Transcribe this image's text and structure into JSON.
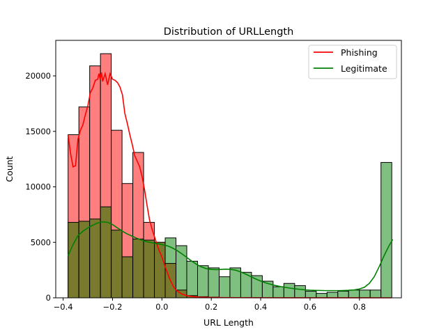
{
  "chart_data": {
    "type": "bar",
    "title": "Distribution of URLLength",
    "xlabel": "URL Length",
    "ylabel": "Count",
    "xlim": [
      -0.43,
      0.97
    ],
    "ylim": [
      0,
      23200
    ],
    "xticks": [
      -0.4,
      -0.2,
      0.0,
      0.2,
      0.4,
      0.6,
      0.8
    ],
    "xtick_labels": [
      "−0.4",
      "−0.2",
      "0.0",
      "0.2",
      "0.4",
      "0.6",
      "0.8"
    ],
    "yticks": [
      0,
      5000,
      10000,
      15000,
      20000
    ],
    "ytick_labels": [
      "0",
      "5000",
      "10000",
      "15000",
      "20000"
    ],
    "bins": {
      "start": -0.38,
      "width": 0.0437,
      "count": 30
    },
    "series": [
      {
        "name": "Phishing",
        "color": "#ff0000",
        "values": [
          14700,
          17200,
          20900,
          22000,
          15100,
          10300,
          13100,
          6800,
          5000,
          3100,
          700,
          200,
          100,
          60,
          30,
          20,
          10,
          10,
          0,
          0,
          0,
          0,
          0,
          0,
          0,
          0,
          0,
          0,
          0,
          0
        ],
        "kde": [
          [
            -0.38,
            14700
          ],
          [
            -0.37,
            13000
          ],
          [
            -0.36,
            11800
          ],
          [
            -0.35,
            11900
          ],
          [
            -0.34,
            14300
          ],
          [
            -0.33,
            15100
          ],
          [
            -0.32,
            15600
          ],
          [
            -0.31,
            16500
          ],
          [
            -0.3,
            17300
          ],
          [
            -0.29,
            18500
          ],
          [
            -0.28,
            18900
          ],
          [
            -0.27,
            19600
          ],
          [
            -0.26,
            19700
          ],
          [
            -0.255,
            20200
          ],
          [
            -0.25,
            19700
          ],
          [
            -0.245,
            20300
          ],
          [
            -0.24,
            19500
          ],
          [
            -0.23,
            20200
          ],
          [
            -0.22,
            19200
          ],
          [
            -0.21,
            20200
          ],
          [
            -0.2,
            19700
          ],
          [
            -0.19,
            19600
          ],
          [
            -0.18,
            19400
          ],
          [
            -0.17,
            19000
          ],
          [
            -0.16,
            18300
          ],
          [
            -0.15,
            16600
          ],
          [
            -0.14,
            15700
          ],
          [
            -0.13,
            14700
          ],
          [
            -0.12,
            13800
          ],
          [
            -0.11,
            12800
          ],
          [
            -0.1,
            12300
          ],
          [
            -0.09,
            11800
          ],
          [
            -0.08,
            10900
          ],
          [
            -0.07,
            9700
          ],
          [
            -0.06,
            8300
          ],
          [
            -0.05,
            7000
          ],
          [
            -0.04,
            6200
          ],
          [
            -0.03,
            5500
          ],
          [
            -0.02,
            4800
          ],
          [
            -0.01,
            4200
          ],
          [
            0.0,
            3700
          ],
          [
            0.01,
            3000
          ],
          [
            0.02,
            2400
          ],
          [
            0.03,
            1800
          ],
          [
            0.04,
            1300
          ],
          [
            0.05,
            900
          ],
          [
            0.06,
            650
          ],
          [
            0.08,
            350
          ],
          [
            0.1,
            200
          ],
          [
            0.12,
            120
          ],
          [
            0.15,
            60
          ],
          [
            0.2,
            30
          ],
          [
            0.3,
            15
          ],
          [
            0.4,
            8
          ],
          [
            0.5,
            4
          ],
          [
            0.7,
            2
          ],
          [
            0.93,
            0
          ]
        ]
      },
      {
        "name": "Legitimate",
        "color": "#008000",
        "values": [
          6800,
          6900,
          7100,
          8200,
          6100,
          3700,
          5300,
          5200,
          5000,
          5400,
          4700,
          3300,
          2900,
          2700,
          1900,
          2700,
          2300,
          2000,
          1500,
          1000,
          1300,
          1100,
          600,
          400,
          500,
          600,
          700,
          700,
          700,
          12200
        ],
        "kde": [
          [
            -0.38,
            3800
          ],
          [
            -0.36,
            4800
          ],
          [
            -0.34,
            5600
          ],
          [
            -0.32,
            6000
          ],
          [
            -0.3,
            6300
          ],
          [
            -0.28,
            6550
          ],
          [
            -0.26,
            6750
          ],
          [
            -0.24,
            6850
          ],
          [
            -0.22,
            6800
          ],
          [
            -0.2,
            6600
          ],
          [
            -0.18,
            6300
          ],
          [
            -0.16,
            6000
          ],
          [
            -0.14,
            5750
          ],
          [
            -0.12,
            5550
          ],
          [
            -0.1,
            5350
          ],
          [
            -0.08,
            5180
          ],
          [
            -0.06,
            5050
          ],
          [
            -0.04,
            4960
          ],
          [
            -0.02,
            4880
          ],
          [
            0.0,
            4800
          ],
          [
            0.02,
            4700
          ],
          [
            0.04,
            4520
          ],
          [
            0.06,
            4280
          ],
          [
            0.08,
            3980
          ],
          [
            0.1,
            3650
          ],
          [
            0.12,
            3320
          ],
          [
            0.14,
            3020
          ],
          [
            0.16,
            2780
          ],
          [
            0.18,
            2630
          ],
          [
            0.2,
            2560
          ],
          [
            0.22,
            2540
          ],
          [
            0.24,
            2560
          ],
          [
            0.26,
            2580
          ],
          [
            0.28,
            2560
          ],
          [
            0.3,
            2480
          ],
          [
            0.32,
            2330
          ],
          [
            0.34,
            2130
          ],
          [
            0.36,
            1910
          ],
          [
            0.38,
            1700
          ],
          [
            0.4,
            1510
          ],
          [
            0.42,
            1350
          ],
          [
            0.44,
            1220
          ],
          [
            0.46,
            1110
          ],
          [
            0.48,
            1020
          ],
          [
            0.5,
            940
          ],
          [
            0.52,
            870
          ],
          [
            0.54,
            810
          ],
          [
            0.56,
            760
          ],
          [
            0.58,
            720
          ],
          [
            0.6,
            690
          ],
          [
            0.62,
            670
          ],
          [
            0.64,
            660
          ],
          [
            0.66,
            650
          ],
          [
            0.68,
            650
          ],
          [
            0.7,
            650
          ],
          [
            0.72,
            650
          ],
          [
            0.74,
            660
          ],
          [
            0.76,
            680
          ],
          [
            0.78,
            720
          ],
          [
            0.8,
            800
          ],
          [
            0.82,
            950
          ],
          [
            0.84,
            1300
          ],
          [
            0.86,
            1900
          ],
          [
            0.88,
            2800
          ],
          [
            0.9,
            3800
          ],
          [
            0.92,
            4700
          ],
          [
            0.935,
            5250
          ]
        ]
      }
    ],
    "overlap_color": "#7a7a2e",
    "grid": false,
    "legend_position": "top-right"
  }
}
